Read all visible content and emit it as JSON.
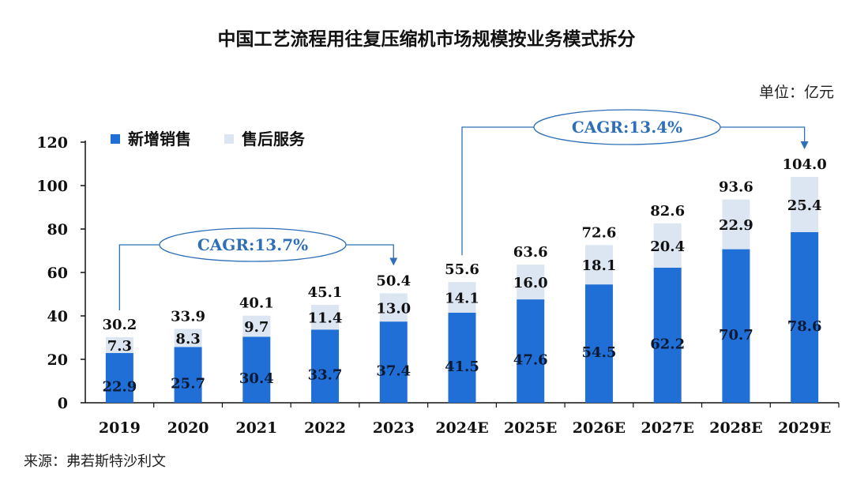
{
  "title": "中国工艺流程用往复压缩机市场规模按业务模式拆分",
  "unit_label": "单位：亿元",
  "source": "来源：弗若斯特沙利文",
  "colors": {
    "new_sales": "#1F6FD6",
    "after_sales": "#DCE5F2",
    "axis": "#111111",
    "callout": "#2E6FB8"
  },
  "chart_data": {
    "type": "bar",
    "stacked": true,
    "categories": [
      "2019",
      "2020",
      "2021",
      "2022",
      "2023",
      "2024E",
      "2025E",
      "2026E",
      "2027E",
      "2028E",
      "2029E"
    ],
    "series": [
      {
        "name": "新增销售",
        "values": [
          22.9,
          25.7,
          30.4,
          33.7,
          37.4,
          41.5,
          47.6,
          54.5,
          62.2,
          70.7,
          78.6
        ]
      },
      {
        "name": "售后服务",
        "values": [
          7.3,
          8.3,
          9.7,
          11.4,
          13.0,
          14.1,
          16.0,
          18.1,
          20.4,
          22.9,
          25.4
        ]
      }
    ],
    "totals": [
      30.2,
      33.9,
      40.1,
      45.1,
      50.4,
      55.6,
      63.6,
      72.6,
      82.6,
      93.6,
      104.0
    ],
    "ylim": [
      0,
      120
    ],
    "yticks": [
      0,
      20,
      40,
      60,
      80,
      100,
      120
    ],
    "legend_position": "top-left",
    "annotations": [
      {
        "text": "CAGR:13.7%",
        "from": "2019",
        "to": "2023"
      },
      {
        "text": "CAGR:13.4%",
        "from": "2024E",
        "to": "2029E"
      }
    ]
  }
}
